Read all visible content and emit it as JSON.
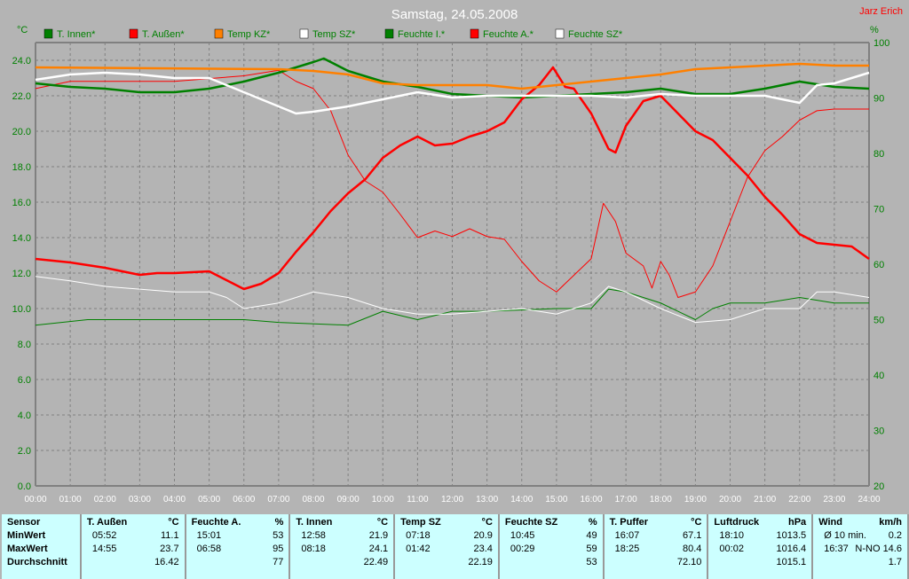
{
  "chart_data": {
    "type": "line",
    "title": "Samstag, 24.05.2008",
    "author": "Jarz Erich",
    "ylabel_left": "°C",
    "ylabel_right": "%",
    "ylim_left": [
      0,
      25
    ],
    "ylim_right": [
      20,
      100
    ],
    "yticks_left": [
      "0.0",
      "2.0",
      "4.0",
      "6.0",
      "8.0",
      "10.0",
      "12.0",
      "14.0",
      "16.0",
      "18.0",
      "20.0",
      "22.0",
      "24.0"
    ],
    "yticks_right": [
      "20",
      "30",
      "40",
      "50",
      "60",
      "70",
      "80",
      "90",
      "100"
    ],
    "xticks": [
      "00:00",
      "01:00",
      "02:00",
      "03:00",
      "04:00",
      "05:00",
      "06:00",
      "07:00",
      "08:00",
      "09:00",
      "10:00",
      "11:00",
      "12:00",
      "13:00",
      "14:00",
      "15:00",
      "16:00",
      "17:00",
      "18:00",
      "19:00",
      "20:00",
      "21:00",
      "22:00",
      "23:00",
      "24:00"
    ],
    "grid": true,
    "legend_position": "top",
    "series": [
      {
        "name": "T. Innen*",
        "color": "#008000",
        "axis": "left",
        "width": 2,
        "points": [
          [
            0,
            22.7
          ],
          [
            1,
            22.5
          ],
          [
            2,
            22.4
          ],
          [
            3,
            22.2
          ],
          [
            4,
            22.2
          ],
          [
            5,
            22.4
          ],
          [
            6,
            22.8
          ],
          [
            7,
            23.3
          ],
          [
            8,
            23.9
          ],
          [
            8.3,
            24.1
          ],
          [
            9,
            23.4
          ],
          [
            10,
            22.8
          ],
          [
            11,
            22.5
          ],
          [
            12,
            22.1
          ],
          [
            13,
            22.0
          ],
          [
            14,
            21.9
          ],
          [
            15,
            22.0
          ],
          [
            16,
            22.1
          ],
          [
            17,
            22.2
          ],
          [
            18,
            22.4
          ],
          [
            19,
            22.1
          ],
          [
            20,
            22.1
          ],
          [
            21,
            22.4
          ],
          [
            22,
            22.8
          ],
          [
            23,
            22.5
          ],
          [
            24,
            22.4
          ]
        ]
      },
      {
        "name": "T. Außen*",
        "color": "#ff0000",
        "axis": "left",
        "width": 2,
        "points": [
          [
            0,
            12.8
          ],
          [
            1,
            12.6
          ],
          [
            2,
            12.3
          ],
          [
            3,
            11.9
          ],
          [
            3.5,
            12.0
          ],
          [
            4,
            12.0
          ],
          [
            5,
            12.1
          ],
          [
            5.5,
            11.6
          ],
          [
            6,
            11.1
          ],
          [
            6.5,
            11.4
          ],
          [
            7,
            12.0
          ],
          [
            7.5,
            13.2
          ],
          [
            8,
            14.3
          ],
          [
            8.5,
            15.5
          ],
          [
            9,
            16.5
          ],
          [
            9.5,
            17.3
          ],
          [
            10,
            18.5
          ],
          [
            10.5,
            19.2
          ],
          [
            11,
            19.7
          ],
          [
            11.5,
            19.2
          ],
          [
            12,
            19.3
          ],
          [
            12.5,
            19.7
          ],
          [
            13,
            20.0
          ],
          [
            13.5,
            20.5
          ],
          [
            14,
            21.8
          ],
          [
            14.5,
            22.6
          ],
          [
            14.9,
            23.6
          ],
          [
            15.25,
            22.5
          ],
          [
            15.5,
            22.4
          ],
          [
            16,
            21.0
          ],
          [
            16.5,
            19.0
          ],
          [
            16.7,
            18.8
          ],
          [
            17,
            20.3
          ],
          [
            17.5,
            21.7
          ],
          [
            18,
            22.0
          ],
          [
            18.5,
            21.0
          ],
          [
            19,
            20.0
          ],
          [
            19.5,
            19.5
          ],
          [
            20,
            18.5
          ],
          [
            20.5,
            17.5
          ],
          [
            21,
            16.3
          ],
          [
            21.5,
            15.3
          ],
          [
            22,
            14.2
          ],
          [
            22.5,
            13.7
          ],
          [
            23,
            13.6
          ],
          [
            23.5,
            13.5
          ],
          [
            24,
            12.8
          ]
        ]
      },
      {
        "name": "Temp KZ*",
        "color": "#ff8000",
        "axis": "left",
        "width": 2,
        "points": [
          [
            0,
            23.6
          ],
          [
            7,
            23.5
          ],
          [
            8,
            23.4
          ],
          [
            9,
            23.2
          ],
          [
            10,
            22.7
          ],
          [
            11,
            22.6
          ],
          [
            12,
            22.6
          ],
          [
            13,
            22.6
          ],
          [
            14,
            22.4
          ],
          [
            15,
            22.6
          ],
          [
            16,
            22.8
          ],
          [
            17,
            23.0
          ],
          [
            18,
            23.2
          ],
          [
            19,
            23.5
          ],
          [
            20,
            23.6
          ],
          [
            21,
            23.7
          ],
          [
            22,
            23.8
          ],
          [
            23,
            23.7
          ],
          [
            24,
            23.7
          ]
        ]
      },
      {
        "name": "Temp SZ*",
        "color": "#ffffff",
        "axis": "left",
        "width": 2,
        "points": [
          [
            0,
            22.9
          ],
          [
            1,
            23.2
          ],
          [
            2,
            23.3
          ],
          [
            3,
            23.2
          ],
          [
            4,
            23.0
          ],
          [
            5,
            23.0
          ],
          [
            5.5,
            22.6
          ],
          [
            6,
            22.2
          ],
          [
            7,
            21.4
          ],
          [
            7.5,
            21.0
          ],
          [
            8,
            21.1
          ],
          [
            9,
            21.4
          ],
          [
            10,
            21.8
          ],
          [
            11,
            22.2
          ],
          [
            12,
            21.9
          ],
          [
            13,
            22.0
          ],
          [
            14,
            22.0
          ],
          [
            15,
            22.0
          ],
          [
            16,
            22.0
          ],
          [
            17,
            21.9
          ],
          [
            18,
            22.1
          ],
          [
            19,
            22.0
          ],
          [
            20,
            22.0
          ],
          [
            21,
            22.0
          ],
          [
            22,
            21.6
          ],
          [
            22.5,
            22.6
          ],
          [
            23,
            22.7
          ],
          [
            23.5,
            23.0
          ],
          [
            24,
            23.3
          ]
        ]
      },
      {
        "name": "Feuchte I.*",
        "color": "#008000",
        "axis": "right",
        "width": 1,
        "points": [
          [
            0,
            49
          ],
          [
            1.5,
            50
          ],
          [
            6,
            50
          ],
          [
            7,
            49.5
          ],
          [
            9,
            49
          ],
          [
            10,
            51.5
          ],
          [
            11,
            50
          ],
          [
            12,
            51.5
          ],
          [
            13,
            51.5
          ],
          [
            15,
            52
          ],
          [
            16,
            52
          ],
          [
            16.5,
            55.5
          ],
          [
            17,
            55
          ],
          [
            18,
            53
          ],
          [
            19,
            50
          ],
          [
            19.5,
            52
          ],
          [
            20,
            53
          ],
          [
            21,
            53
          ],
          [
            22,
            54
          ],
          [
            23,
            53
          ],
          [
            24,
            53
          ]
        ]
      },
      {
        "name": "Feuchte A.*",
        "color": "#ff0000",
        "axis": "right",
        "width": 1,
        "points": [
          [
            0,
            91.7
          ],
          [
            1,
            93
          ],
          [
            2,
            93
          ],
          [
            3,
            93
          ],
          [
            4,
            93
          ],
          [
            6,
            94
          ],
          [
            7,
            95
          ],
          [
            7.5,
            93
          ],
          [
            8,
            91.7
          ],
          [
            8.5,
            87.7
          ],
          [
            9,
            79.7
          ],
          [
            9.5,
            75
          ],
          [
            10,
            73
          ],
          [
            10.5,
            69
          ],
          [
            11,
            64.8
          ],
          [
            11.5,
            66
          ],
          [
            12,
            65
          ],
          [
            12.5,
            66.4
          ],
          [
            13,
            65
          ],
          [
            13.5,
            64.5
          ],
          [
            14,
            60.5
          ],
          [
            14.5,
            57
          ],
          [
            15,
            55
          ],
          [
            15.5,
            58
          ],
          [
            16,
            61
          ],
          [
            16.35,
            71
          ],
          [
            16.7,
            67.7
          ],
          [
            17,
            62
          ],
          [
            17.5,
            59.7
          ],
          [
            17.75,
            55.7
          ],
          [
            18,
            60.5
          ],
          [
            18.25,
            58
          ],
          [
            18.5,
            54
          ],
          [
            19,
            55
          ],
          [
            19.5,
            59.7
          ],
          [
            20,
            67.7
          ],
          [
            20.5,
            75.7
          ],
          [
            21,
            80.5
          ],
          [
            21.5,
            83
          ],
          [
            22,
            86
          ],
          [
            22.5,
            87.7
          ],
          [
            23,
            88
          ],
          [
            24,
            88
          ]
        ]
      },
      {
        "name": "Feuchte SZ*",
        "color": "#ffffff",
        "axis": "right",
        "width": 1,
        "points": [
          [
            0,
            57.8
          ],
          [
            1,
            57
          ],
          [
            2,
            56
          ],
          [
            3,
            55.5
          ],
          [
            4,
            55
          ],
          [
            5,
            55
          ],
          [
            5.5,
            54
          ],
          [
            6,
            52
          ],
          [
            7,
            53
          ],
          [
            8,
            55
          ],
          [
            9,
            54
          ],
          [
            10,
            52
          ],
          [
            11,
            51
          ],
          [
            12,
            51
          ],
          [
            13,
            51.5
          ],
          [
            14,
            52
          ],
          [
            15,
            51
          ],
          [
            16,
            53
          ],
          [
            16.5,
            56
          ],
          [
            17,
            55
          ],
          [
            18,
            52
          ],
          [
            19,
            49.5
          ],
          [
            20,
            50
          ],
          [
            21,
            52
          ],
          [
            22,
            52
          ],
          [
            22.5,
            55
          ],
          [
            23,
            55
          ],
          [
            24,
            54
          ]
        ]
      }
    ]
  },
  "table": {
    "row_labels": [
      "Sensor",
      "MinWert",
      "MaxWert",
      "Durchschnitt"
    ],
    "columns": [
      {
        "name": "T. Außen",
        "unit": "°C",
        "min_time": "05:52",
        "min": "11.1",
        "max_time": "14:55",
        "max": "23.7",
        "avg": "16.42"
      },
      {
        "name": "Feuchte A.",
        "unit": "%",
        "min_time": "15:01",
        "min": "53",
        "max_time": "06:58",
        "max": "95",
        "avg": "77"
      },
      {
        "name": "T. Innen",
        "unit": "°C",
        "min_time": "12:58",
        "min": "21.9",
        "max_time": "08:18",
        "max": "24.1",
        "avg": "22.49"
      },
      {
        "name": "Temp SZ",
        "unit": "°C",
        "min_time": "07:18",
        "min": "20.9",
        "max_time": "01:42",
        "max": "23.4",
        "avg": "22.19"
      },
      {
        "name": "Feuchte SZ",
        "unit": "%",
        "min_time": "10:45",
        "min": "49",
        "max_time": "00:29",
        "max": "59",
        "avg": "53"
      },
      {
        "name": "T. Puffer",
        "unit": "°C",
        "min_time": "16:07",
        "min": "67.1",
        "max_time": "18:25",
        "max": "80.4",
        "avg": "72.10"
      },
      {
        "name": "Luftdruck",
        "unit": "hPa",
        "min_time": "18:10",
        "min": "1013.5",
        "max_time": "00:02",
        "max": "1016.4",
        "avg": "1015.1"
      },
      {
        "name": "Wind",
        "unit": "km/h",
        "min_time": "Ø 10 min.",
        "min": "0.2",
        "max_time": "16:37",
        "max": "N-NO 14.6",
        "avg": "1.7"
      }
    ]
  }
}
